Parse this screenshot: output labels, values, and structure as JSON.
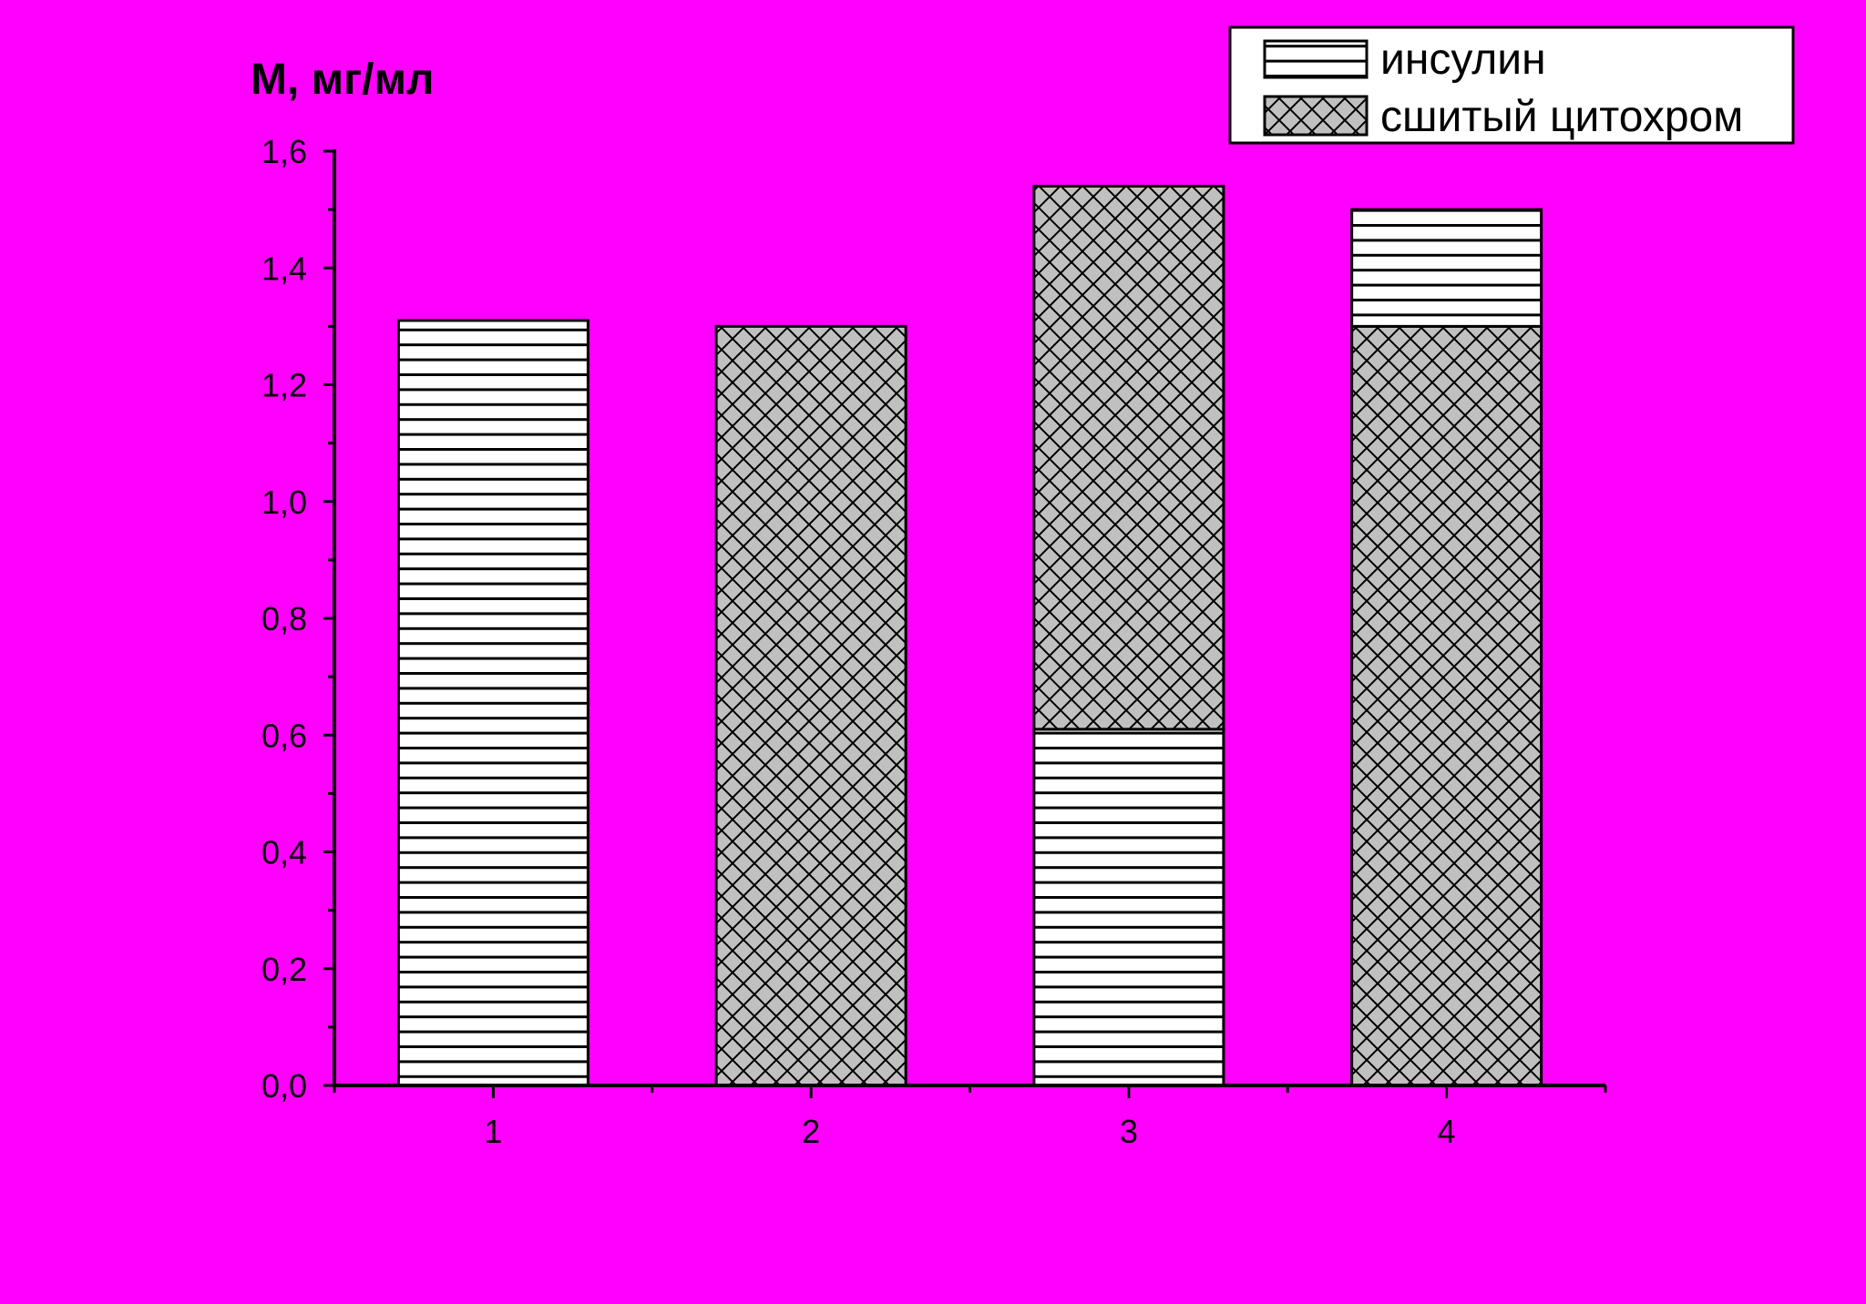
{
  "chart_data": {
    "type": "bar",
    "stacked": true,
    "ylabel": "М, мг/мл",
    "xlabel": "",
    "categories": [
      "1",
      "2",
      "3",
      "4"
    ],
    "series": [
      {
        "name": "инсулин",
        "pattern": "horizontal-lines"
      },
      {
        "name": "сшитый цитохром",
        "pattern": "crosshatch",
        "fill": "#C0C0C0"
      }
    ],
    "stacks": [
      [
        {
          "series": 0,
          "value": 1.31
        }
      ],
      [
        {
          "series": 1,
          "value": 1.3
        }
      ],
      [
        {
          "series": 0,
          "value": 0.61
        },
        {
          "series": 1,
          "value": 0.93
        }
      ],
      [
        {
          "series": 1,
          "value": 1.3
        },
        {
          "series": 0,
          "value": 0.2
        }
      ]
    ],
    "ylim": [
      0,
      1.6
    ],
    "yticks": [
      "0,0",
      "0,2",
      "0,4",
      "0,6",
      "0,8",
      "1,0",
      "1,2",
      "1,4",
      "1,6"
    ],
    "grid": false,
    "legend_position": "top-right",
    "background": "#FF00FF"
  }
}
